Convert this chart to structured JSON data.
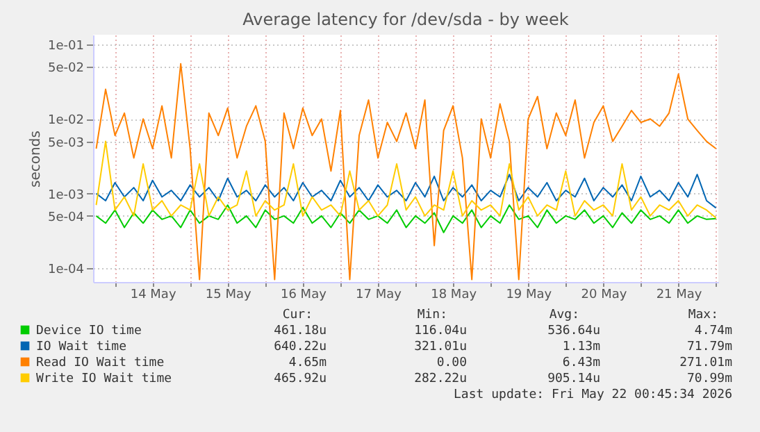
{
  "chart_data": {
    "type": "line",
    "title": "Average latency for /dev/sda - by week",
    "ylabel": "seconds",
    "log": "y",
    "grid": true,
    "legend": "bottom",
    "line_style": "solid",
    "marker": "none",
    "xlim": [
      "2026-05-13T17:00",
      "2026-05-22T00:45"
    ],
    "xticks": [
      {
        "value": "2026-05-14T00:00",
        "label": null
      },
      {
        "value": "2026-05-14T12:00",
        "label": "14 May"
      },
      {
        "value": "2026-05-15T00:00",
        "label": null
      },
      {
        "value": "2026-05-15T12:00",
        "label": "15 May"
      },
      {
        "value": "2026-05-16T00:00",
        "label": null
      },
      {
        "value": "2026-05-16T12:00",
        "label": "16 May"
      },
      {
        "value": "2026-05-17T00:00",
        "label": null
      },
      {
        "value": "2026-05-17T12:00",
        "label": "17 May"
      },
      {
        "value": "2026-05-18T00:00",
        "label": null
      },
      {
        "value": "2026-05-18T12:00",
        "label": "18 May"
      },
      {
        "value": "2026-05-19T00:00",
        "label": null
      },
      {
        "value": "2026-05-19T12:00",
        "label": "19 May"
      },
      {
        "value": "2026-05-20T00:00",
        "label": null
      },
      {
        "value": "2026-05-20T12:00",
        "label": "20 May"
      },
      {
        "value": "2026-05-21T00:00",
        "label": null
      },
      {
        "value": "2026-05-21T12:00",
        "label": "21 May"
      },
      {
        "value": "2026-05-22T00:00",
        "label": null
      }
    ],
    "ylim": [
      6.5e-05,
      0.135
    ],
    "yticks": [
      {
        "value": 0.0001,
        "label": "1e-04"
      },
      {
        "value": 0.0005,
        "label": "5e-04"
      },
      {
        "value": 0.001,
        "label": "1e-03"
      },
      {
        "value": 0.005,
        "label": "5e-03"
      },
      {
        "value": 0.01,
        "label": "1e-02"
      },
      {
        "value": 0.05,
        "label": "5e-02"
      },
      {
        "value": 0.1,
        "label": "1e-01"
      }
    ],
    "x": [
      "2026-05-13T18:00",
      "2026-05-13T21:00",
      "2026-05-14T00:00",
      "2026-05-14T03:00",
      "2026-05-14T06:00",
      "2026-05-14T09:00",
      "2026-05-14T12:00",
      "2026-05-14T15:00",
      "2026-05-14T18:00",
      "2026-05-14T21:00",
      "2026-05-15T00:00",
      "2026-05-15T03:00",
      "2026-05-15T06:00",
      "2026-05-15T09:00",
      "2026-05-15T12:00",
      "2026-05-15T15:00",
      "2026-05-15T18:00",
      "2026-05-15T21:00",
      "2026-05-16T00:00",
      "2026-05-16T03:00",
      "2026-05-16T06:00",
      "2026-05-16T09:00",
      "2026-05-16T12:00",
      "2026-05-16T15:00",
      "2026-05-16T18:00",
      "2026-05-16T21:00",
      "2026-05-17T00:00",
      "2026-05-17T03:00",
      "2026-05-17T06:00",
      "2026-05-17T09:00",
      "2026-05-17T12:00",
      "2026-05-17T15:00",
      "2026-05-17T18:00",
      "2026-05-17T21:00",
      "2026-05-18T00:00",
      "2026-05-18T03:00",
      "2026-05-18T06:00",
      "2026-05-18T09:00",
      "2026-05-18T12:00",
      "2026-05-18T15:00",
      "2026-05-18T18:00",
      "2026-05-18T21:00",
      "2026-05-19T00:00",
      "2026-05-19T03:00",
      "2026-05-19T06:00",
      "2026-05-19T09:00",
      "2026-05-19T12:00",
      "2026-05-19T15:00",
      "2026-05-19T18:00",
      "2026-05-19T21:00",
      "2026-05-20T00:00",
      "2026-05-20T03:00",
      "2026-05-20T06:00",
      "2026-05-20T09:00",
      "2026-05-20T12:00",
      "2026-05-20T15:00",
      "2026-05-20T18:00",
      "2026-05-20T21:00",
      "2026-05-21T00:00",
      "2026-05-21T03:00",
      "2026-05-21T06:00",
      "2026-05-21T09:00",
      "2026-05-21T12:00",
      "2026-05-21T15:00",
      "2026-05-21T18:00",
      "2026-05-21T21:00",
      "2026-05-22T00:00"
    ],
    "series": [
      {
        "name": "Device IO time",
        "color": "#00cc00",
        "values": [
          0.0005,
          0.0004,
          0.0006,
          0.00035,
          0.00055,
          0.0004,
          0.0006,
          0.00045,
          0.0005,
          0.00035,
          0.0006,
          0.0004,
          0.0005,
          0.00045,
          0.0007,
          0.0004,
          0.0005,
          0.00035,
          0.0006,
          0.00045,
          0.0005,
          0.0004,
          0.00065,
          0.0004,
          0.0005,
          0.00035,
          0.00055,
          0.0004,
          0.0006,
          0.00045,
          0.0005,
          0.0004,
          0.0006,
          0.00035,
          0.0005,
          0.0004,
          0.00055,
          0.0003,
          0.0005,
          0.0004,
          0.0006,
          0.00035,
          0.0005,
          0.0004,
          0.0007,
          0.00045,
          0.0005,
          0.00035,
          0.0006,
          0.0004,
          0.0005,
          0.00045,
          0.0006,
          0.0004,
          0.0005,
          0.00035,
          0.00055,
          0.0004,
          0.0006,
          0.00045,
          0.0005,
          0.0004,
          0.0006,
          0.0004,
          0.0005,
          0.00045,
          0.00046
        ]
      },
      {
        "name": "IO Wait time",
        "color": "#0066b3",
        "values": [
          0.001,
          0.0008,
          0.0014,
          0.0009,
          0.0012,
          0.0008,
          0.0015,
          0.0009,
          0.0011,
          0.0008,
          0.0013,
          0.0009,
          0.0012,
          0.0008,
          0.0016,
          0.0009,
          0.0011,
          0.0008,
          0.0013,
          0.0009,
          0.0012,
          0.0008,
          0.0014,
          0.0009,
          0.0011,
          0.0008,
          0.0015,
          0.0009,
          0.0012,
          0.0008,
          0.0013,
          0.0009,
          0.0011,
          0.0008,
          0.0014,
          0.0009,
          0.0017,
          0.0008,
          0.0012,
          0.0009,
          0.0013,
          0.0008,
          0.0011,
          0.0009,
          0.0018,
          0.0008,
          0.0012,
          0.0009,
          0.0014,
          0.0008,
          0.0011,
          0.0009,
          0.0016,
          0.0008,
          0.0012,
          0.0009,
          0.0013,
          0.0008,
          0.0017,
          0.0009,
          0.0011,
          0.0008,
          0.0014,
          0.0009,
          0.0018,
          0.0008,
          0.00064
        ]
      },
      {
        "name": "Read IO Wait time",
        "color": "#ff8000",
        "values": [
          0.004,
          0.025,
          0.006,
          0.012,
          0.003,
          0.01,
          0.004,
          0.015,
          0.003,
          0.055,
          0.004,
          7e-05,
          0.012,
          0.006,
          0.014,
          0.003,
          0.008,
          0.015,
          0.005,
          7e-05,
          0.012,
          0.004,
          0.014,
          0.006,
          0.01,
          0.002,
          0.013,
          7e-05,
          0.006,
          0.018,
          0.003,
          0.009,
          0.005,
          0.012,
          0.004,
          0.018,
          0.0002,
          0.007,
          0.015,
          0.003,
          7e-05,
          0.01,
          0.003,
          0.016,
          0.005,
          7e-05,
          0.01,
          0.02,
          0.004,
          0.012,
          0.006,
          0.018,
          0.003,
          0.009,
          0.015,
          0.005,
          0.008,
          0.013,
          0.009,
          0.01,
          0.008,
          0.012,
          0.04,
          0.01,
          0.007,
          0.005,
          0.004
        ]
      },
      {
        "name": "Write IO Wait time",
        "color": "#ffcc00",
        "values": [
          0.0007,
          0.005,
          0.0006,
          0.0009,
          0.0005,
          0.0025,
          0.0006,
          0.0008,
          0.0005,
          0.0007,
          0.0006,
          0.0025,
          0.0005,
          0.0009,
          0.0006,
          0.0007,
          0.002,
          0.0005,
          0.0008,
          0.0006,
          0.0007,
          0.0025,
          0.0005,
          0.0009,
          0.0006,
          0.0007,
          0.0005,
          0.002,
          0.0006,
          0.0008,
          0.0005,
          0.0007,
          0.0025,
          0.0006,
          0.0009,
          0.0005,
          0.0007,
          0.0006,
          0.002,
          0.0005,
          0.0008,
          0.0006,
          0.0007,
          0.0005,
          0.0025,
          0.0006,
          0.0009,
          0.0005,
          0.0007,
          0.0006,
          0.002,
          0.0005,
          0.0008,
          0.0006,
          0.0007,
          0.0005,
          0.0025,
          0.0006,
          0.0009,
          0.0005,
          0.0007,
          0.0006,
          0.0008,
          0.0005,
          0.0007,
          0.0006,
          0.00047
        ]
      }
    ],
    "annotations": [
      "Cur:",
      "Min:",
      "Avg:",
      "Max:",
      "461.18u",
      "116.04u",
      "536.64u",
      "4.74m",
      "640.22u",
      "321.01u",
      "1.13m",
      "71.79m",
      "4.65m",
      "0.00",
      "6.43m",
      "271.01m",
      "465.92u",
      "282.22u",
      "905.14u",
      "70.99m",
      "Last update: Fri May 22 00:45:34 2026"
    ]
  }
}
